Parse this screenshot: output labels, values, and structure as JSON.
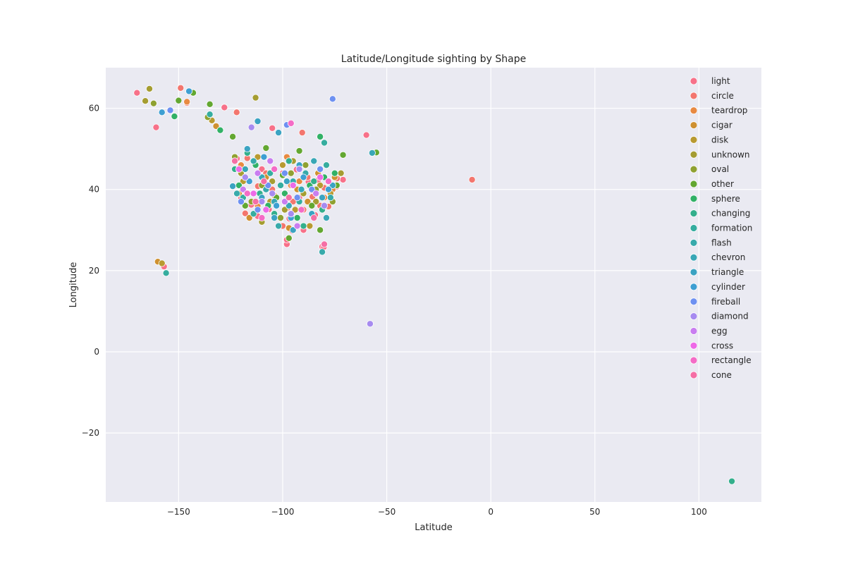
{
  "chart_data": {
    "type": "scatter",
    "title": "Latitude/Longitude sighting by Shape",
    "xlabel": "Latitude",
    "ylabel": "Longitude",
    "xlim": [
      -185,
      130
    ],
    "ylim": [
      -37,
      70
    ],
    "xticks": [
      -150,
      -100,
      -50,
      0,
      50,
      100
    ],
    "yticks": [
      -20,
      0,
      20,
      40,
      60
    ],
    "grid": true,
    "legend_placement": "top-right",
    "series": [
      {
        "name": "light",
        "color": "#f77189",
        "points": [
          [
            -170,
            63.8
          ],
          [
            -160.8,
            55.3
          ],
          [
            -59.8,
            53.4
          ],
          [
            -128,
            60.2
          ],
          [
            -105,
            55.1
          ],
          [
            -157,
            21
          ],
          [
            -81,
            25.9
          ],
          [
            -98,
            26.5
          ],
          [
            -98,
            27.6
          ],
          [
            -122,
            47.6
          ],
          [
            -118,
            34
          ],
          [
            -112,
            33.4
          ],
          [
            -104.9,
            39.7
          ],
          [
            -96.8,
            32.8
          ],
          [
            -87.6,
            41.9
          ],
          [
            -84.4,
            33.7
          ],
          [
            -80.2,
            25.8
          ],
          [
            -74,
            40.7
          ],
          [
            -71,
            42.4
          ],
          [
            -90,
            30
          ],
          [
            -95.4,
            29.8
          ],
          [
            -106.6,
            35.1
          ],
          [
            -115.1,
            36.2
          ],
          [
            -93.3,
            44.9
          ],
          [
            -83,
            42.3
          ],
          [
            -77,
            38.9
          ],
          [
            -120,
            38
          ],
          [
            -100,
            44
          ],
          [
            -86,
            39.8
          ],
          [
            -110,
            45
          ],
          [
            -92,
            38
          ]
        ]
      },
      {
        "name": "circle",
        "color": "#f3766e",
        "points": [
          [
            -149,
            65
          ],
          [
            -122.1,
            59
          ],
          [
            -90.6,
            54
          ],
          [
            -9,
            42.4
          ],
          [
            -146,
            61.3
          ],
          [
            -118,
            34.1
          ],
          [
            -111.9,
            40.8
          ],
          [
            -97.5,
            35.5
          ],
          [
            -85.7,
            38.2
          ],
          [
            -80,
            40.4
          ],
          [
            -73.9,
            42.7
          ],
          [
            -88,
            43
          ],
          [
            -105,
            40
          ],
          [
            -95,
            37
          ],
          [
            -82,
            36
          ],
          [
            -117,
            47.7
          ],
          [
            -108,
            44
          ],
          [
            -78,
            35.8
          ],
          [
            -100,
            31
          ],
          [
            -90,
            35
          ]
        ]
      },
      {
        "name": "teardrop",
        "color": "#e88a42",
        "points": [
          [
            -146,
            61.6
          ],
          [
            -120,
            46
          ],
          [
            -104,
            38.5
          ],
          [
            -92,
            42
          ],
          [
            -80,
            38
          ],
          [
            -112,
            36
          ],
          [
            -96,
            41
          ],
          [
            -76,
            40
          ],
          [
            -86,
            34
          ],
          [
            -98,
            48
          ]
        ]
      },
      {
        "name": "cigar",
        "color": "#cf9131",
        "points": [
          [
            -160,
            22.2
          ],
          [
            -132,
            55.6
          ],
          [
            -121,
            39
          ],
          [
            -108,
            43
          ],
          [
            -93,
            40
          ],
          [
            -83,
            44
          ],
          [
            -116,
            33
          ],
          [
            -97,
            30.5
          ],
          [
            -75,
            43
          ],
          [
            -88,
            37
          ]
        ]
      },
      {
        "name": "disk",
        "color": "#b89a31",
        "points": [
          [
            -158,
            21.8
          ],
          [
            -134,
            57
          ],
          [
            -119,
            42
          ],
          [
            -106,
            37
          ],
          [
            -94,
            35
          ],
          [
            -82,
            41
          ],
          [
            -112,
            48
          ],
          [
            -100,
            46
          ],
          [
            -77,
            39
          ],
          [
            -87,
            31
          ]
        ]
      },
      {
        "name": "unknown",
        "color": "#a59d32",
        "points": [
          [
            -164,
            64.8
          ],
          [
            -166,
            61.8
          ],
          [
            -113,
            62.6
          ],
          [
            -120,
            44
          ],
          [
            -105,
            42
          ],
          [
            -90,
            39
          ],
          [
            -78,
            42
          ],
          [
            -110,
            32
          ],
          [
            -95,
            47
          ],
          [
            -84,
            37
          ],
          [
            -72,
            44
          ],
          [
            -99,
            35
          ]
        ]
      },
      {
        "name": "oval",
        "color": "#8fa131",
        "points": [
          [
            -162,
            61.2
          ],
          [
            -136,
            57.8
          ],
          [
            -123,
            48
          ],
          [
            -110,
            41
          ],
          [
            -96,
            44
          ],
          [
            -84,
            40
          ],
          [
            -76,
            37
          ],
          [
            -115,
            37
          ],
          [
            -101,
            33
          ],
          [
            -89,
            46
          ]
        ]
      },
      {
        "name": "other",
        "color": "#63a731",
        "points": [
          [
            -150,
            61.9
          ],
          [
            -135,
            61
          ],
          [
            -143,
            63.8
          ],
          [
            -55,
            49.1
          ],
          [
            -71,
            48.5
          ],
          [
            -124,
            53
          ],
          [
            -108,
            50.2
          ],
          [
            -100,
            43.5
          ],
          [
            -92,
            49.5
          ],
          [
            -118,
            36
          ],
          [
            -103,
            38
          ],
          [
            -86,
            36
          ],
          [
            -74,
            41
          ],
          [
            -97,
            28
          ],
          [
            -82,
            30
          ]
        ]
      },
      {
        "name": "sphere",
        "color": "#32b166",
        "points": [
          [
            -152,
            58
          ],
          [
            -130,
            54.6
          ],
          [
            -82,
            53
          ],
          [
            -121,
            41
          ],
          [
            -107,
            36
          ],
          [
            -93,
            33
          ],
          [
            -80,
            43
          ],
          [
            -113,
            46
          ],
          [
            -99,
            39
          ],
          [
            -87,
            41
          ],
          [
            -75,
            44
          ]
        ]
      },
      {
        "name": "changing",
        "color": "#34af8c",
        "points": [
          [
            115.8,
            -31.9
          ],
          [
            -117,
            49
          ],
          [
            -104,
            34
          ],
          [
            -90,
            31
          ],
          [
            -81,
            35
          ],
          [
            -111,
            39
          ],
          [
            -97,
            47
          ],
          [
            -85,
            42
          ],
          [
            -123,
            45
          ]
        ]
      },
      {
        "name": "formation",
        "color": "#36ad9f",
        "points": [
          [
            -156,
            19.4
          ],
          [
            -135,
            58.5
          ],
          [
            -80,
            51.5
          ],
          [
            -119,
            38
          ],
          [
            -106,
            44
          ],
          [
            -92,
            37
          ],
          [
            -79,
            46
          ],
          [
            -114,
            34
          ],
          [
            -101,
            41
          ]
        ]
      },
      {
        "name": "flash",
        "color": "#38aaab",
        "points": [
          [
            -81,
            24.6
          ],
          [
            -114,
            47
          ],
          [
            -102,
            31
          ],
          [
            -89,
            44
          ],
          [
            -77,
            38
          ],
          [
            -122,
            39
          ],
          [
            -95,
            42
          ],
          [
            -108,
            40
          ]
        ]
      },
      {
        "name": "chevron",
        "color": "#39a7b6",
        "points": [
          [
            -57,
            49
          ],
          [
            -118,
            45
          ],
          [
            -104,
            37
          ],
          [
            -91,
            40
          ],
          [
            -79,
            33
          ],
          [
            -110,
            43
          ],
          [
            -97,
            36
          ],
          [
            -85,
            47
          ]
        ]
      },
      {
        "name": "triangle",
        "color": "#3ba3c2",
        "points": [
          [
            -112,
            56.8
          ],
          [
            -102,
            54
          ],
          [
            -124,
            40.8
          ],
          [
            -110,
            38
          ],
          [
            -98,
            42
          ],
          [
            -86,
            34
          ],
          [
            -76,
            41
          ],
          [
            -117,
            50
          ],
          [
            -92,
            46
          ],
          [
            -81,
            38
          ],
          [
            -104,
            33
          ],
          [
            -95,
            30
          ]
        ]
      },
      {
        "name": "cylinder",
        "color": "#3e9fd2",
        "points": [
          [
            -158,
            59
          ],
          [
            -145,
            64.2
          ],
          [
            -116,
            42
          ],
          [
            -103,
            36
          ],
          [
            -90,
            43
          ],
          [
            -78,
            40
          ],
          [
            -109,
            48
          ],
          [
            -96,
            33
          ]
        ]
      },
      {
        "name": "fireball",
        "color": "#6e91f1",
        "points": [
          [
            -76,
            62.3
          ],
          [
            -154,
            59.5
          ],
          [
            -98,
            55.9
          ],
          [
            -120,
            37
          ],
          [
            -107,
            41
          ],
          [
            -93,
            38
          ],
          [
            -82,
            45
          ],
          [
            -112,
            35
          ],
          [
            -99,
            44
          ],
          [
            -86,
            40
          ]
        ]
      },
      {
        "name": "diamond",
        "color": "#a78bf0",
        "points": [
          [
            -58,
            6.9
          ],
          [
            -115,
            55.3
          ],
          [
            -118,
            43
          ],
          [
            -105,
            39
          ],
          [
            -92,
            45
          ],
          [
            -80,
            36
          ],
          [
            -110,
            37
          ],
          [
            -96,
            34
          ]
        ]
      },
      {
        "name": "egg",
        "color": "#c97ef0",
        "points": [
          [
            -119,
            40
          ],
          [
            -106,
            47
          ],
          [
            -93,
            31
          ],
          [
            -84,
            39
          ],
          [
            -112,
            44
          ],
          [
            -99,
            37
          ]
        ]
      },
      {
        "name": "cross",
        "color": "#ee6ae7",
        "points": [
          [
            -121,
            45
          ],
          [
            -108,
            35
          ],
          [
            -95,
            41
          ],
          [
            -82,
            43
          ],
          [
            -114,
            39
          ]
        ]
      },
      {
        "name": "rectangle",
        "color": "#f46cc6",
        "points": [
          [
            -96,
            56.3
          ],
          [
            -117,
            39
          ],
          [
            -104,
            45
          ],
          [
            -91,
            35
          ],
          [
            -78,
            42
          ],
          [
            -110,
            33
          ]
        ]
      },
      {
        "name": "cone",
        "color": "#f56fa5",
        "points": [
          [
            -123,
            47
          ],
          [
            -109,
            42
          ],
          [
            -97,
            38
          ],
          [
            -85,
            33
          ],
          [
            -80,
            26.5
          ],
          [
            -113,
            37
          ]
        ]
      }
    ]
  }
}
